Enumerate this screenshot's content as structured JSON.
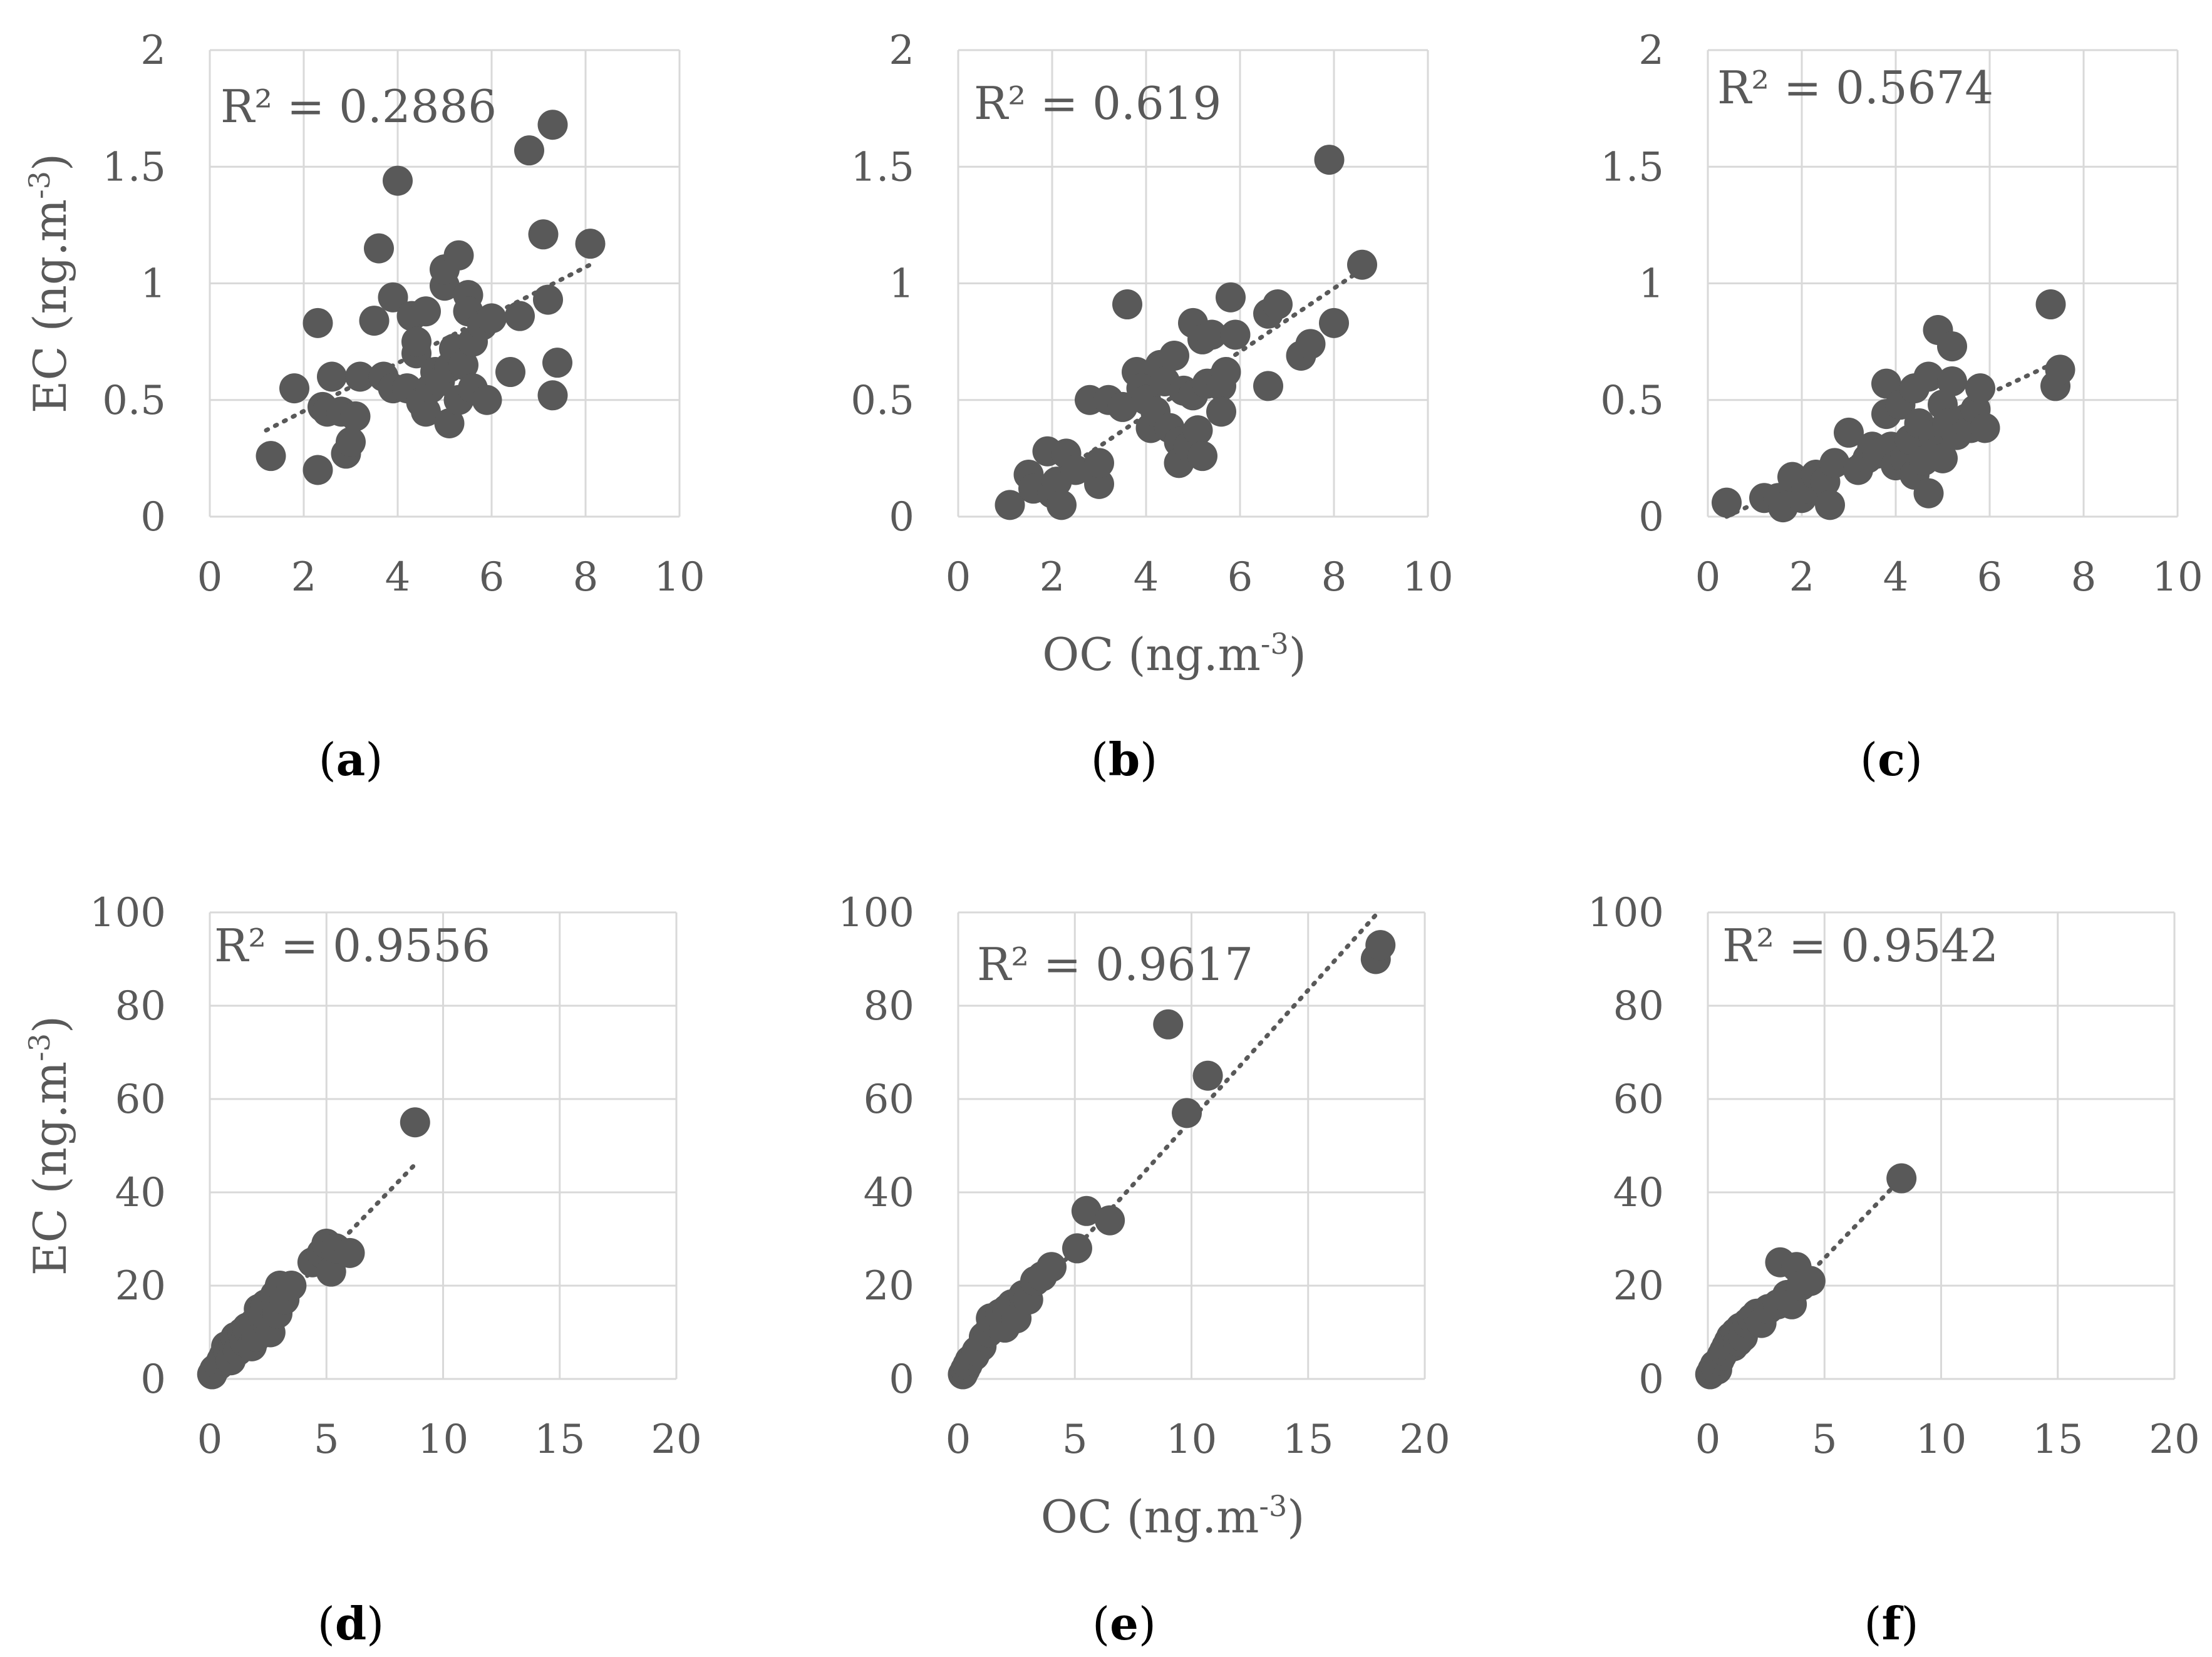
{
  "colors": {
    "marker": "#595959",
    "grid": "#d9d9d9",
    "text": "#595959",
    "trend": "#595959"
  },
  "chart_data": [
    {
      "id": "a",
      "type": "scatter",
      "panel_label": "a",
      "r2_text": "R² = 0.2886",
      "xlim": [
        0,
        10
      ],
      "ylim": [
        0,
        2
      ],
      "xticks": [
        "0",
        "2",
        "4",
        "6",
        "8",
        "10"
      ],
      "yticks": [
        "0",
        "0.5",
        "1",
        "1.5",
        "2"
      ],
      "xticks_v": [
        0,
        2,
        4,
        6,
        8,
        10
      ],
      "yticks_v": [
        0,
        0.5,
        1,
        1.5,
        2
      ],
      "ylabel": "EC  (ng.m-3)",
      "ylabel_main": "EC  (ng.m",
      "ylabel_sup": "-3",
      "ylabel_end": ")",
      "trend": [
        [
          1.2,
          0.37
        ],
        [
          8.1,
          1.08
        ]
      ],
      "points": [
        [
          1.3,
          0.26
        ],
        [
          1.8,
          0.55
        ],
        [
          2.3,
          0.83
        ],
        [
          2.3,
          0.2
        ],
        [
          2.4,
          0.47
        ],
        [
          2.5,
          0.45
        ],
        [
          2.6,
          0.6
        ],
        [
          2.8,
          0.45
        ],
        [
          2.9,
          0.27
        ],
        [
          3.0,
          0.32
        ],
        [
          3.1,
          0.43
        ],
        [
          3.2,
          0.6
        ],
        [
          3.5,
          0.84
        ],
        [
          3.6,
          1.15
        ],
        [
          3.7,
          0.6
        ],
        [
          3.9,
          0.94
        ],
        [
          3.9,
          0.55
        ],
        [
          4.0,
          1.44
        ],
        [
          4.2,
          0.55
        ],
        [
          4.3,
          0.86
        ],
        [
          4.4,
          0.7
        ],
        [
          4.4,
          0.75
        ],
        [
          4.5,
          0.49
        ],
        [
          4.6,
          0.88
        ],
        [
          4.6,
          0.45
        ],
        [
          4.7,
          0.55
        ],
        [
          4.8,
          0.62
        ],
        [
          4.9,
          0.58
        ],
        [
          5.0,
          0.99
        ],
        [
          5.0,
          1.06
        ],
        [
          5.1,
          0.64
        ],
        [
          5.1,
          0.4
        ],
        [
          5.2,
          0.72
        ],
        [
          5.3,
          0.5
        ],
        [
          5.3,
          1.12
        ],
        [
          5.4,
          0.65
        ],
        [
          5.5,
          0.95
        ],
        [
          5.5,
          0.88
        ],
        [
          5.6,
          0.55
        ],
        [
          5.6,
          0.75
        ],
        [
          5.8,
          0.82
        ],
        [
          5.9,
          0.5
        ],
        [
          6.0,
          0.85
        ],
        [
          6.4,
          0.62
        ],
        [
          6.6,
          0.86
        ],
        [
          6.8,
          1.57
        ],
        [
          7.1,
          1.21
        ],
        [
          7.2,
          0.93
        ],
        [
          7.3,
          1.68
        ],
        [
          7.3,
          0.52
        ],
        [
          7.4,
          0.66
        ],
        [
          8.1,
          1.17
        ]
      ]
    },
    {
      "id": "b",
      "type": "scatter",
      "panel_label": "b",
      "r2_text": "R² = 0.619",
      "xlim": [
        0,
        10
      ],
      "ylim": [
        0,
        2
      ],
      "xticks": [
        "0",
        "2",
        "4",
        "6",
        "8",
        "10"
      ],
      "yticks": [
        "0",
        "0.5",
        "1",
        "1.5",
        "2"
      ],
      "xticks_v": [
        0,
        2,
        4,
        6,
        8,
        10
      ],
      "yticks_v": [
        0,
        0.5,
        1,
        1.5,
        2
      ],
      "xlabel": "OC (ng.m-3)",
      "xlabel_main": "OC (ng.m",
      "xlabel_sup": "-3",
      "xlabel_end": ")",
      "trend": [
        [
          1.3,
          0.07
        ],
        [
          8.6,
          1.06
        ]
      ],
      "points": [
        [
          1.1,
          0.05
        ],
        [
          1.5,
          0.18
        ],
        [
          1.6,
          0.12
        ],
        [
          1.9,
          0.28
        ],
        [
          2.0,
          0.1
        ],
        [
          2.1,
          0.15
        ],
        [
          2.2,
          0.05
        ],
        [
          2.3,
          0.27
        ],
        [
          2.5,
          0.2
        ],
        [
          2.8,
          0.5
        ],
        [
          3.0,
          0.14
        ],
        [
          3.0,
          0.23
        ],
        [
          3.2,
          0.5
        ],
        [
          3.5,
          0.47
        ],
        [
          3.6,
          0.91
        ],
        [
          3.8,
          0.62
        ],
        [
          3.9,
          0.55
        ],
        [
          4.0,
          0.5
        ],
        [
          4.1,
          0.38
        ],
        [
          4.2,
          0.45
        ],
        [
          4.3,
          0.65
        ],
        [
          4.4,
          0.58
        ],
        [
          4.5,
          0.38
        ],
        [
          4.6,
          0.69
        ],
        [
          4.7,
          0.32
        ],
        [
          4.7,
          0.23
        ],
        [
          4.8,
          0.54
        ],
        [
          4.9,
          0.3
        ],
        [
          5.0,
          0.83
        ],
        [
          5.0,
          0.52
        ],
        [
          5.1,
          0.37
        ],
        [
          5.2,
          0.76
        ],
        [
          5.2,
          0.26
        ],
        [
          5.3,
          0.57
        ],
        [
          5.4,
          0.78
        ],
        [
          5.6,
          0.56
        ],
        [
          5.6,
          0.45
        ],
        [
          5.7,
          0.62
        ],
        [
          5.8,
          0.94
        ],
        [
          5.9,
          0.78
        ],
        [
          6.6,
          0.56
        ],
        [
          6.6,
          0.87
        ],
        [
          6.8,
          0.91
        ],
        [
          7.3,
          0.69
        ],
        [
          7.5,
          0.74
        ],
        [
          7.9,
          1.53
        ],
        [
          8.0,
          0.83
        ],
        [
          8.6,
          1.08
        ]
      ]
    },
    {
      "id": "c",
      "type": "scatter",
      "panel_label": "c",
      "r2_text": "R² = 0.5674",
      "xlim": [
        0,
        10
      ],
      "ylim": [
        0,
        2
      ],
      "xticks": [
        "0",
        "2",
        "4",
        "6",
        "8",
        "10"
      ],
      "yticks": [
        "0",
        "0.5",
        "1",
        "1.5",
        "2"
      ],
      "xticks_v": [
        0,
        2,
        4,
        6,
        8,
        10
      ],
      "yticks_v": [
        0,
        0.5,
        1,
        1.5,
        2
      ],
      "trend": [
        [
          0.4,
          0.0
        ],
        [
          7.5,
          0.67
        ]
      ],
      "points": [
        [
          0.4,
          0.06
        ],
        [
          1.2,
          0.08
        ],
        [
          1.5,
          0.08
        ],
        [
          1.6,
          0.04
        ],
        [
          1.8,
          0.17
        ],
        [
          2.0,
          0.08
        ],
        [
          2.1,
          0.12
        ],
        [
          2.3,
          0.18
        ],
        [
          2.5,
          0.15
        ],
        [
          2.6,
          0.05
        ],
        [
          2.7,
          0.23
        ],
        [
          3.0,
          0.36
        ],
        [
          3.2,
          0.2
        ],
        [
          3.4,
          0.25
        ],
        [
          3.5,
          0.3
        ],
        [
          3.6,
          0.27
        ],
        [
          3.8,
          0.44
        ],
        [
          3.8,
          0.57
        ],
        [
          3.9,
          0.3
        ],
        [
          4.0,
          0.22
        ],
        [
          4.1,
          0.48
        ],
        [
          4.2,
          0.25
        ],
        [
          4.3,
          0.33
        ],
        [
          4.4,
          0.55
        ],
        [
          4.4,
          0.18
        ],
        [
          4.5,
          0.4
        ],
        [
          4.6,
          0.24
        ],
        [
          4.7,
          0.1
        ],
        [
          4.7,
          0.6
        ],
        [
          4.8,
          0.35
        ],
        [
          4.9,
          0.8
        ],
        [
          4.9,
          0.28
        ],
        [
          5.0,
          0.25
        ],
        [
          5.0,
          0.48
        ],
        [
          5.1,
          0.4
        ],
        [
          5.2,
          0.73
        ],
        [
          5.2,
          0.58
        ],
        [
          5.3,
          0.35
        ],
        [
          5.5,
          0.42
        ],
        [
          5.6,
          0.38
        ],
        [
          5.7,
          0.46
        ],
        [
          5.8,
          0.55
        ],
        [
          5.9,
          0.38
        ],
        [
          7.3,
          0.91
        ],
        [
          7.4,
          0.56
        ],
        [
          7.5,
          0.63
        ]
      ]
    },
    {
      "id": "d",
      "type": "scatter",
      "panel_label": "d",
      "r2_text": "R² = 0.9556",
      "xlim": [
        0,
        20
      ],
      "ylim": [
        0,
        100
      ],
      "xticks": [
        "0",
        "5",
        "10",
        "15",
        "20"
      ],
      "yticks": [
        "0",
        "20",
        "40",
        "60",
        "80",
        "100"
      ],
      "xticks_v": [
        0,
        5,
        10,
        15,
        20
      ],
      "yticks_v": [
        0,
        20,
        40,
        60,
        80,
        100
      ],
      "ylabel": "EC  (ng.m-3)",
      "ylabel_main": "EC  (ng.m",
      "ylabel_sup": "-3",
      "ylabel_end": ")",
      "trend": [
        [
          0,
          0.5
        ],
        [
          8.8,
          46
        ]
      ],
      "points": [
        [
          0.1,
          1
        ],
        [
          0.2,
          2
        ],
        [
          0.4,
          3
        ],
        [
          0.5,
          4
        ],
        [
          0.6,
          5
        ],
        [
          0.7,
          7
        ],
        [
          0.8,
          6
        ],
        [
          0.9,
          4
        ],
        [
          1.0,
          8
        ],
        [
          1.1,
          9
        ],
        [
          1.2,
          6
        ],
        [
          1.4,
          10
        ],
        [
          1.5,
          8
        ],
        [
          1.6,
          11
        ],
        [
          1.8,
          7
        ],
        [
          1.9,
          12
        ],
        [
          2.0,
          9
        ],
        [
          2.1,
          15
        ],
        [
          2.3,
          13
        ],
        [
          2.4,
          16
        ],
        [
          2.5,
          11
        ],
        [
          2.6,
          10
        ],
        [
          2.8,
          18
        ],
        [
          2.9,
          14
        ],
        [
          3.0,
          20
        ],
        [
          3.2,
          17
        ],
        [
          3.5,
          20
        ],
        [
          4.4,
          25
        ],
        [
          4.8,
          27
        ],
        [
          5.0,
          29
        ],
        [
          5.2,
          23
        ],
        [
          5.4,
          28
        ],
        [
          6.0,
          27
        ],
        [
          8.8,
          55
        ]
      ]
    },
    {
      "id": "e",
      "type": "scatter",
      "panel_label": "e",
      "r2_text": "R² = 0.9617",
      "xlim": [
        0,
        20
      ],
      "ylim": [
        0,
        100
      ],
      "xticks": [
        "0",
        "5",
        "10",
        "15",
        "20"
      ],
      "yticks": [
        "0",
        "20",
        "40",
        "60",
        "80",
        "100"
      ],
      "xticks_v": [
        0,
        5,
        10,
        15,
        20
      ],
      "yticks_v": [
        0,
        20,
        40,
        60,
        80,
        100
      ],
      "xlabel": "OC  (ng.m-3)",
      "xlabel_main": "OC  (ng.m",
      "xlabel_sup": "-3",
      "xlabel_end": ")",
      "trend": [
        [
          0,
          0
        ],
        [
          18.0,
          100
        ]
      ],
      "points": [
        [
          0.2,
          1
        ],
        [
          0.3,
          2
        ],
        [
          0.4,
          3
        ],
        [
          0.5,
          4
        ],
        [
          0.7,
          5
        ],
        [
          0.8,
          6
        ],
        [
          1.0,
          7
        ],
        [
          1.1,
          9
        ],
        [
          1.3,
          10
        ],
        [
          1.4,
          13
        ],
        [
          1.6,
          12
        ],
        [
          1.8,
          14
        ],
        [
          2.0,
          11
        ],
        [
          2.1,
          15
        ],
        [
          2.3,
          16
        ],
        [
          2.5,
          13
        ],
        [
          2.8,
          18
        ],
        [
          3.0,
          17
        ],
        [
          3.3,
          21
        ],
        [
          3.6,
          22
        ],
        [
          4.0,
          24
        ],
        [
          5.1,
          28
        ],
        [
          5.5,
          36
        ],
        [
          6.5,
          34
        ],
        [
          9.0,
          76
        ],
        [
          9.8,
          57
        ],
        [
          10.7,
          65
        ],
        [
          17.9,
          90
        ],
        [
          18.1,
          93
        ]
      ]
    },
    {
      "id": "f",
      "type": "scatter",
      "panel_label": "f",
      "r2_text": "R² = 0.9542",
      "xlim": [
        0,
        20
      ],
      "ylim": [
        0,
        100
      ],
      "xticks": [
        "0",
        "5",
        "10",
        "15",
        "20"
      ],
      "yticks": [
        "0",
        "20",
        "40",
        "60",
        "80",
        "100"
      ],
      "xticks_v": [
        0,
        5,
        10,
        15,
        20
      ],
      "yticks_v": [
        0,
        20,
        40,
        60,
        80,
        100
      ],
      "trend": [
        [
          0,
          0
        ],
        [
          8.3,
          43
        ]
      ],
      "points": [
        [
          0.1,
          1
        ],
        [
          0.2,
          2
        ],
        [
          0.3,
          3
        ],
        [
          0.4,
          2
        ],
        [
          0.5,
          4
        ],
        [
          0.6,
          5
        ],
        [
          0.7,
          6
        ],
        [
          0.8,
          7
        ],
        [
          0.9,
          8
        ],
        [
          1.0,
          9
        ],
        [
          1.1,
          7
        ],
        [
          1.2,
          10
        ],
        [
          1.3,
          8
        ],
        [
          1.4,
          11
        ],
        [
          1.5,
          9
        ],
        [
          1.7,
          12
        ],
        [
          1.9,
          13
        ],
        [
          2.1,
          14
        ],
        [
          2.3,
          12
        ],
        [
          2.6,
          15
        ],
        [
          3.0,
          16
        ],
        [
          3.1,
          25
        ],
        [
          3.4,
          18
        ],
        [
          3.6,
          16
        ],
        [
          3.8,
          24
        ],
        [
          4.0,
          20
        ],
        [
          4.4,
          21
        ],
        [
          8.3,
          43
        ]
      ]
    }
  ]
}
